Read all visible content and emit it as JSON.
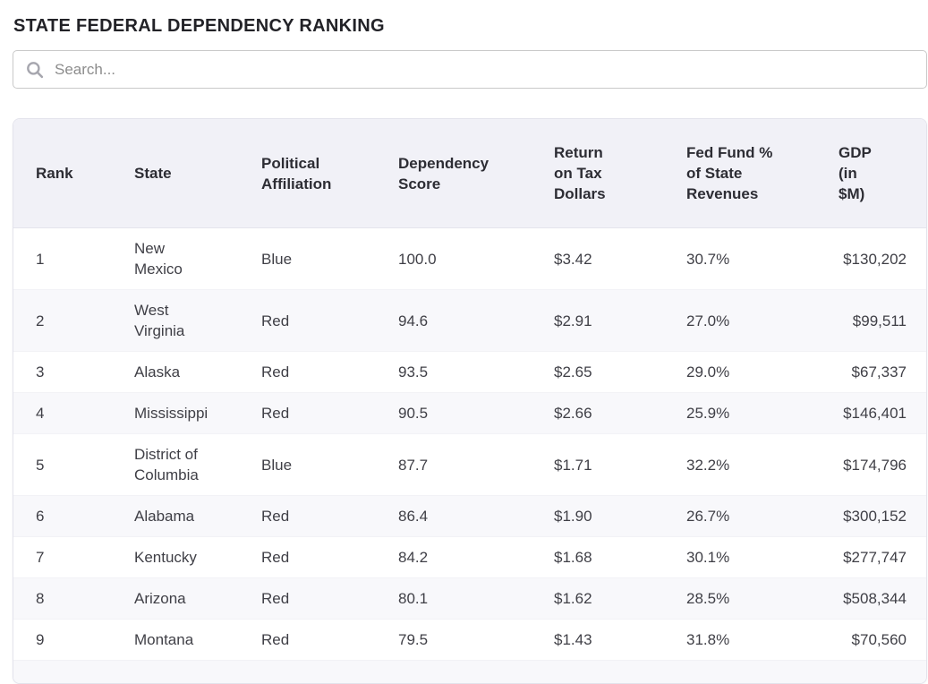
{
  "page": {
    "title": "STATE FEDERAL DEPENDENCY RANKING"
  },
  "search": {
    "placeholder": "Search...",
    "value": "",
    "icon": "search-icon"
  },
  "table": {
    "columns": [
      {
        "key": "rank",
        "label": "Rank"
      },
      {
        "key": "state",
        "label": "State"
      },
      {
        "key": "political_affiliation",
        "label": "Political Affiliation"
      },
      {
        "key": "dependency_score",
        "label": "Dependency Score"
      },
      {
        "key": "return_on_tax",
        "label": "Return on Tax Dollars"
      },
      {
        "key": "fed_fund_pct",
        "label": "Fed Fund % of State Revenues"
      },
      {
        "key": "gdp",
        "label": "GDP (in $M)"
      }
    ],
    "rows": [
      {
        "rank": "1",
        "state": "New Mexico",
        "political_affiliation": "Blue",
        "dependency_score": "100.0",
        "return_on_tax": "$3.42",
        "fed_fund_pct": "30.7%",
        "gdp": "$130,202"
      },
      {
        "rank": "2",
        "state": "West Virginia",
        "political_affiliation": "Red",
        "dependency_score": "94.6",
        "return_on_tax": "$2.91",
        "fed_fund_pct": "27.0%",
        "gdp": "$99,511"
      },
      {
        "rank": "3",
        "state": "Alaska",
        "political_affiliation": "Red",
        "dependency_score": "93.5",
        "return_on_tax": "$2.65",
        "fed_fund_pct": "29.0%",
        "gdp": "$67,337"
      },
      {
        "rank": "4",
        "state": "Mississippi",
        "political_affiliation": "Red",
        "dependency_score": "90.5",
        "return_on_tax": "$2.66",
        "fed_fund_pct": "25.9%",
        "gdp": "$146,401"
      },
      {
        "rank": "5",
        "state": "District of Columbia",
        "political_affiliation": "Blue",
        "dependency_score": "87.7",
        "return_on_tax": "$1.71",
        "fed_fund_pct": "32.2%",
        "gdp": "$174,796"
      },
      {
        "rank": "6",
        "state": "Alabama",
        "political_affiliation": "Red",
        "dependency_score": "86.4",
        "return_on_tax": "$1.90",
        "fed_fund_pct": "26.7%",
        "gdp": "$300,152"
      },
      {
        "rank": "7",
        "state": "Kentucky",
        "political_affiliation": "Red",
        "dependency_score": "84.2",
        "return_on_tax": "$1.68",
        "fed_fund_pct": "30.1%",
        "gdp": "$277,747"
      },
      {
        "rank": "8",
        "state": "Arizona",
        "political_affiliation": "Red",
        "dependency_score": "80.1",
        "return_on_tax": "$1.62",
        "fed_fund_pct": "28.5%",
        "gdp": "$508,344"
      },
      {
        "rank": "9",
        "state": "Montana",
        "political_affiliation": "Red",
        "dependency_score": "79.5",
        "return_on_tax": "$1.43",
        "fed_fund_pct": "31.8%",
        "gdp": "$70,560"
      }
    ]
  },
  "colors": {
    "header_background": "#f1f1f7",
    "row_stripe": "#f8f8fb",
    "card_border": "#e3e3ec",
    "title_text": "#222227",
    "body_text": "#3f3f46",
    "search_border": "#c9c9c9",
    "placeholder_text": "#8c8c8c"
  }
}
